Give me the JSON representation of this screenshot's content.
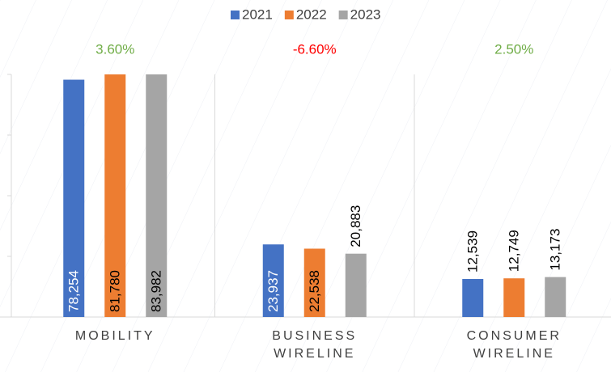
{
  "chart_data": {
    "type": "bar",
    "categories": [
      "MOBILITY",
      "BUSINESS WIRELINE",
      "CONSUMER WIRELINE"
    ],
    "series": [
      {
        "name": "2021",
        "color": "#4472c4",
        "values": [
          78254,
          23937,
          12539
        ],
        "value_labels": [
          "78,254",
          "23,937",
          "12,539"
        ]
      },
      {
        "name": "2022",
        "color": "#ed7d31",
        "values": [
          81780,
          22538,
          12749
        ],
        "value_labels": [
          "81,780",
          "22,538",
          "12,749"
        ]
      },
      {
        "name": "2023",
        "color": "#a5a5a5",
        "values": [
          83982,
          20883,
          13173
        ],
        "value_labels": [
          "83,982",
          "20,883",
          "13,173"
        ]
      }
    ],
    "annotations": [
      {
        "text": "3.60%",
        "color": "#70ad47"
      },
      {
        "text": "-6.60%",
        "color": "#ff0000"
      },
      {
        "text": "2.50%",
        "color": "#70ad47"
      }
    ],
    "ylim": [
      0,
      80000
    ],
    "yticks": [
      0,
      20000,
      40000,
      60000,
      80000
    ],
    "legend": "top"
  }
}
